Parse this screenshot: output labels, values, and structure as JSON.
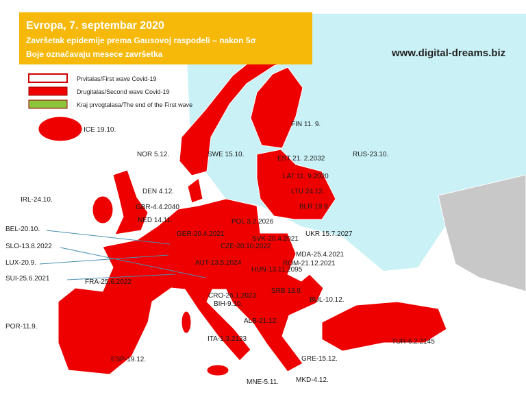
{
  "header": {
    "title": "Evropa, 7. septembar 2020",
    "subtitle": "Završetak epidemije prema Gausovoj raspodeli – nakon 5σ",
    "note": "Boje označavaju mesece završetka"
  },
  "website": "www.digital-dreams.biz",
  "legend": [
    {
      "label": "Prvitalas/First wave Covid-19"
    },
    {
      "label": "Drugitalas/Second wave Covid-19"
    },
    {
      "label": "Kraj prvogtalasa/The end of the First wave"
    }
  ],
  "labels": [
    "ICE 19.10.",
    "NOR 5.12.",
    "SWE 15.10.",
    "FIN 11. 9.",
    "EST 21. 2.2032",
    "RUS-23.10.",
    "LAT 11. 9.2020",
    "LTU 24.12.",
    "BLR 19.9.",
    "IRL-24.10.",
    "DEN 4.12.",
    "GBR-4.4.2040",
    "NED 14.11.",
    "POL 3.2.2026",
    "UKR 15.7.2027",
    "BEL-20.10.",
    "GER-20.4.2021",
    "SVK-20.4.2021",
    "SLO-13.8.2022",
    "CZE-20.10.2022",
    "MDA-25.4.2021",
    "LUX-20.9.",
    "AUT-13.5.2024",
    "ROM-21.12.2021",
    "HUN-13.11.2095",
    "SUI-25.6.2021",
    "FRA-25.6.2022",
    "SRB 13.9.",
    "CRO-26.1.2023",
    "BUL-10.12.",
    "BIH-9.10.",
    "ALB-21.12.",
    "POR-11.9.",
    "ITA-1.3.2123",
    "TUR-6.2.2145",
    "ESP-19.12.",
    "GRE-15.12.",
    "MNE-5.11.",
    "MKD-4.12."
  ]
}
